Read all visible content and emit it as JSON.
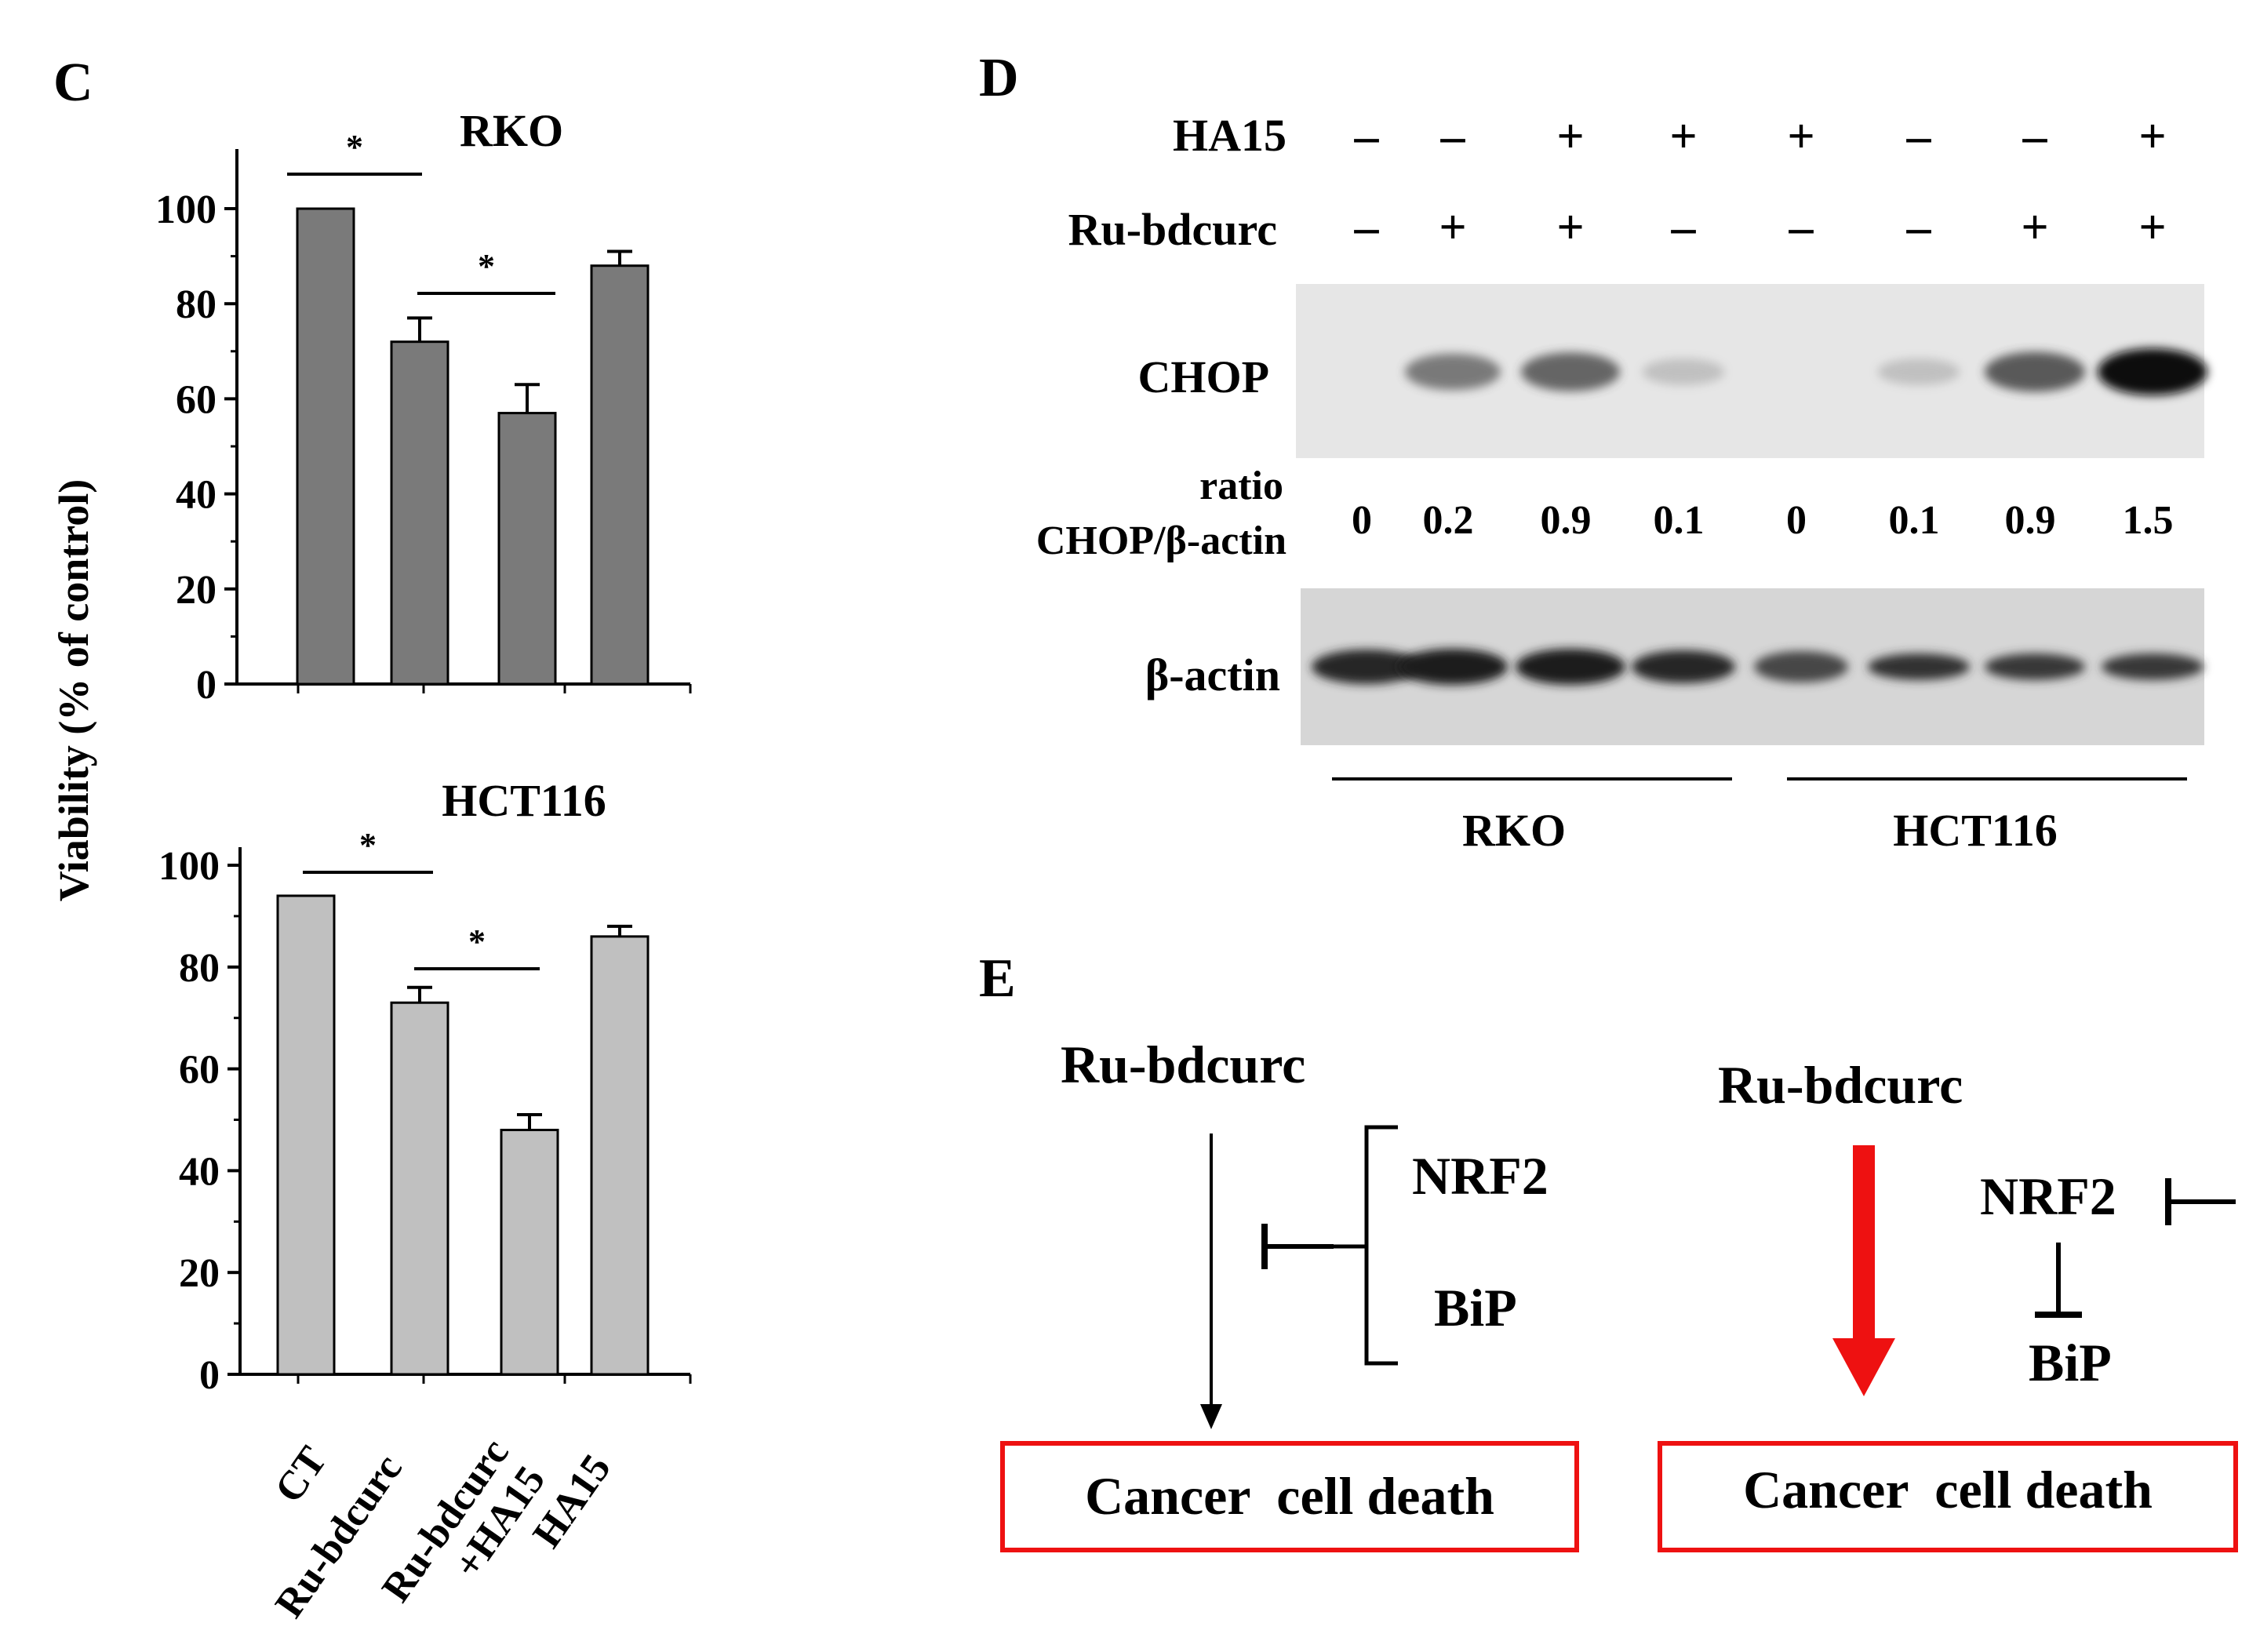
{
  "figure": {
    "panel_c": {
      "letter": "C",
      "y_axis_label": "Viability (% of control)"
    },
    "panel_d": {
      "letter": "D",
      "row_labels": {
        "ha15": "HA15",
        "ru": "Ru-bdcurc",
        "chop": "CHOP",
        "ratio_line1": "ratio",
        "ratio_line2": "CHOP/β-actin",
        "actin": "β-actin"
      },
      "ha15_signs": [
        "–",
        "–",
        "+",
        "+",
        "+",
        "–",
        "–",
        "+"
      ],
      "ru_signs": [
        "–",
        "+",
        "+",
        "–",
        "–",
        "–",
        "+",
        "+"
      ],
      "ratios": [
        "0",
        "0.2",
        "0.9",
        "0.1",
        "0",
        "0.1",
        "0.9",
        "1.5"
      ],
      "chop_band_intensity": [
        0.0,
        0.55,
        0.65,
        0.12,
        0.0,
        0.12,
        0.7,
        1.0
      ],
      "groups": [
        "RKO",
        "HCT116"
      ]
    },
    "panel_e": {
      "letter": "E",
      "left": {
        "drug": "Ru-bdcurc",
        "target1": "NRF2",
        "target2": "BiP",
        "outcome": "Cancer  cell death"
      },
      "right": {
        "drug": "Ru-bdcurc",
        "target1": "NRF2",
        "target2": "BiP",
        "outcome": "Cancer  cell death"
      }
    },
    "colors": {
      "rko_bar": "#7a7a7a",
      "hct_bar": "#c0c0c0",
      "highlight": "#ee1111"
    }
  },
  "chart_data": [
    {
      "type": "bar",
      "title": "RKO",
      "categories": [
        "CT",
        "Ru-bdcurc",
        "Ru-bdcurc +HA15",
        "HA15"
      ],
      "values": [
        100,
        72,
        57,
        88
      ],
      "errors": [
        0,
        5,
        6,
        3
      ],
      "ylabel": "Viability (% of control)",
      "ylim": [
        0,
        100
      ],
      "yticks": [
        0,
        20,
        40,
        60,
        80,
        100
      ],
      "significance": [
        {
          "from": "CT",
          "to": "Ru-bdcurc",
          "label": "*"
        },
        {
          "from": "Ru-bdcurc",
          "to": "Ru-bdcurc +HA15",
          "label": "*"
        }
      ]
    },
    {
      "type": "bar",
      "title": "HCT116",
      "categories": [
        "CT",
        "Ru-bdcurc",
        "Ru-bdcurc +HA15",
        "HA15"
      ],
      "values": [
        94,
        73,
        48,
        86
      ],
      "errors": [
        0,
        3,
        3,
        2
      ],
      "ylabel": "Viability (% of control)",
      "ylim": [
        0,
        100
      ],
      "yticks": [
        0,
        20,
        40,
        60,
        80,
        100
      ],
      "significance": [
        {
          "from": "CT",
          "to": "Ru-bdcurc",
          "label": "*"
        },
        {
          "from": "Ru-bdcurc",
          "to": "Ru-bdcurc +HA15",
          "label": "*"
        }
      ]
    }
  ]
}
